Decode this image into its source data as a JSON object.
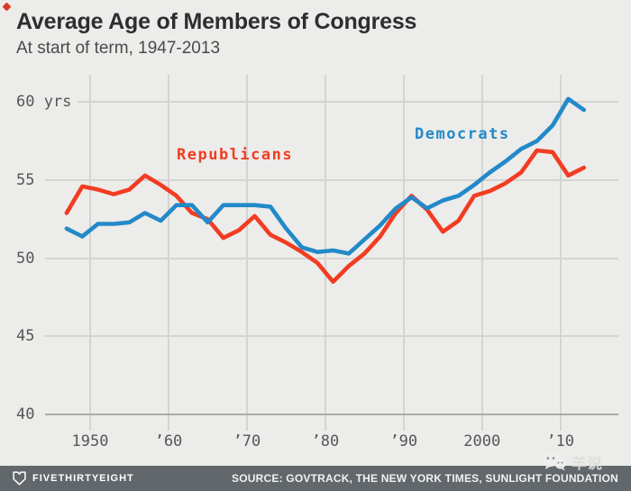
{
  "page": {
    "background": "#ececea",
    "accent_red": "#f23c22",
    "accent_blue": "#2389c9",
    "footer_background": "#61676b",
    "gridline_color": "#d4d4d2"
  },
  "header": {
    "title": "Average Age of Members of Congress",
    "subtitle": "At start of term, 1947-2013"
  },
  "chart_data": {
    "type": "line",
    "title": "Average Age of Members of Congress",
    "subtitle": "At start of term, 1947-2013",
    "x_years": [
      1947,
      1949,
      1951,
      1953,
      1955,
      1957,
      1959,
      1961,
      1963,
      1965,
      1967,
      1969,
      1971,
      1973,
      1975,
      1977,
      1979,
      1981,
      1983,
      1985,
      1987,
      1989,
      1991,
      1993,
      1995,
      1997,
      1999,
      2001,
      2003,
      2005,
      2007,
      2009,
      2011,
      2013
    ],
    "series": [
      {
        "name": "Republicans",
        "label_text": "Republicans",
        "color": "#f23c22",
        "values": [
          52.9,
          54.6,
          54.4,
          54.1,
          54.4,
          55.3,
          54.7,
          54.0,
          52.9,
          52.5,
          51.3,
          51.8,
          52.7,
          51.5,
          51.0,
          50.4,
          49.7,
          48.5,
          49.5,
          50.3,
          51.4,
          52.9,
          54.0,
          53.1,
          51.7,
          52.4,
          54.0,
          54.3,
          54.8,
          55.5,
          56.9,
          56.8,
          55.3,
          55.8
        ]
      },
      {
        "name": "Democrats",
        "label_text": "Democrats",
        "color": "#2389c9",
        "values": [
          51.9,
          51.4,
          52.2,
          52.2,
          52.3,
          52.9,
          52.4,
          53.4,
          53.4,
          52.3,
          53.4,
          53.4,
          53.4,
          53.3,
          51.9,
          50.7,
          50.4,
          50.5,
          50.3,
          51.2,
          52.1,
          53.2,
          53.9,
          53.2,
          53.7,
          54.0,
          54.7,
          55.5,
          56.2,
          57.0,
          57.5,
          58.5,
          60.2,
          59.5
        ]
      }
    ],
    "xlabel": "",
    "ylabel": "yrs",
    "ylim": [
      40,
      60.5
    ],
    "xlim": [
      1946,
      2014.5
    ],
    "y_ticks": [
      60,
      55,
      50,
      45,
      40
    ],
    "y_tick_labels": [
      "60 yrs",
      "55",
      "50",
      "45",
      "40"
    ],
    "x_ticks": [
      1950,
      1960,
      1970,
      1980,
      1990,
      2000,
      2010
    ],
    "x_tick_labels": [
      "1950",
      "’60",
      "’70",
      "’80",
      "’90",
      "2000",
      "’10"
    ],
    "grid": true,
    "legend": "inline series labels near lines"
  },
  "footer": {
    "brand": "FIVETHIRTYEIGHT",
    "source": "SOURCE: GOVTRACK, THE NEW YORK TIMES, SUNLIGHT FOUNDATION"
  },
  "watermark": {
    "icon": "wechat-icon",
    "text": "羊说"
  }
}
